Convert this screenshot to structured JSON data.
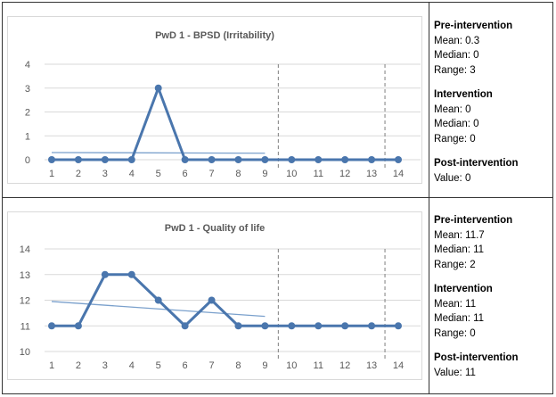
{
  "chart_data": [
    {
      "type": "line",
      "title": "PwD 1 - BPSD (Irritability)",
      "x": [
        1,
        2,
        3,
        4,
        5,
        6,
        7,
        8,
        9,
        10,
        11,
        12,
        13,
        14
      ],
      "values": [
        0,
        0,
        0,
        0,
        3,
        0,
        0,
        0,
        0,
        0,
        0,
        0,
        0,
        0
      ],
      "ylim": [
        0,
        4
      ],
      "yticks": [
        0,
        1,
        2,
        3,
        4
      ],
      "trend": {
        "x": [
          1,
          9
        ],
        "y": [
          0.3,
          0.27
        ]
      },
      "phase_lines": [
        9.5,
        13.5
      ],
      "grid": true,
      "color": "#4a76ad",
      "trend_color": "#7aa0cc"
    },
    {
      "type": "line",
      "title": "PwD 1 - Quality of life",
      "x": [
        1,
        2,
        3,
        4,
        5,
        6,
        7,
        8,
        9,
        10,
        11,
        12,
        13,
        14
      ],
      "values": [
        11,
        11,
        13,
        13,
        12,
        11,
        12,
        11,
        11,
        11,
        11,
        11,
        11,
        11
      ],
      "ylim": [
        10,
        14
      ],
      "yticks": [
        10,
        11,
        12,
        13,
        14
      ],
      "trend": {
        "x": [
          1,
          9
        ],
        "y": [
          11.95,
          11.37
        ]
      },
      "phase_lines": [
        9.5,
        13.5
      ],
      "grid": true,
      "color": "#4a76ad",
      "trend_color": "#7aa0cc"
    }
  ],
  "stats": [
    [
      {
        "h": "Pre-intervention",
        "lines": [
          "Mean: 0.3",
          "Median: 0",
          "Range: 3"
        ]
      },
      {
        "h": "Intervention",
        "lines": [
          "Mean: 0",
          "Median: 0",
          "Range: 0"
        ]
      },
      {
        "h": "Post-intervention",
        "lines": [
          "Value: 0"
        ]
      }
    ],
    [
      {
        "h": "Pre-intervention",
        "lines": [
          "Mean: 11.7",
          "Median: 11",
          "Range: 2"
        ]
      },
      {
        "h": "Intervention",
        "lines": [
          "Mean: 11",
          "Median: 11",
          "Range: 0"
        ]
      },
      {
        "h": "Post-intervention",
        "lines": [
          "Value: 11"
        ]
      }
    ]
  ]
}
